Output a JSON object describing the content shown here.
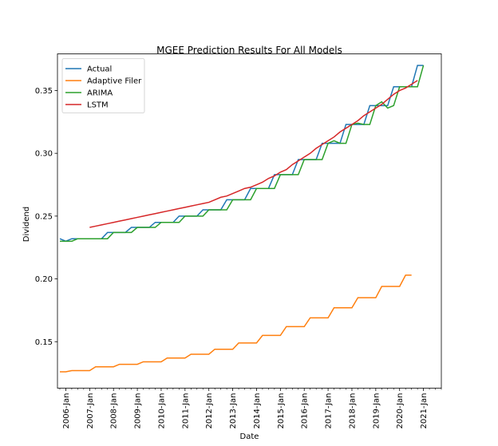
{
  "chart_data": {
    "type": "line",
    "title": "MGEE Prediction Results For All Models",
    "xlabel": "Date",
    "ylabel": "Dividend",
    "xlim": [
      2005.65,
      2021.75
    ],
    "ylim": [
      0.113,
      0.3792
    ],
    "x_ticks": [
      {
        "value": 2006,
        "label": "2006-Jan"
      },
      {
        "value": 2007,
        "label": "2007-Jan"
      },
      {
        "value": 2008,
        "label": "2008-Jan"
      },
      {
        "value": 2009,
        "label": "2009-Jan"
      },
      {
        "value": 2010,
        "label": "2010-Jan"
      },
      {
        "value": 2011,
        "label": "2011-Jan"
      },
      {
        "value": 2012,
        "label": "2012-Jan"
      },
      {
        "value": 2013,
        "label": "2013-Jan"
      },
      {
        "value": 2014,
        "label": "2014-Jan"
      },
      {
        "value": 2015,
        "label": "2015-Jan"
      },
      {
        "value": 2016,
        "label": "2016-Jan"
      },
      {
        "value": 2017,
        "label": "2017-Jan"
      },
      {
        "value": 2018,
        "label": "2018-Jan"
      },
      {
        "value": 2019,
        "label": "2019-Jan"
      },
      {
        "value": 2020,
        "label": "2020-Jan"
      },
      {
        "value": 2021,
        "label": "2021-Jan"
      }
    ],
    "y_ticks": [
      {
        "value": 0.15,
        "label": "0.15"
      },
      {
        "value": 0.2,
        "label": "0.20"
      },
      {
        "value": 0.25,
        "label": "0.25"
      },
      {
        "value": 0.3,
        "label": "0.30"
      },
      {
        "value": 0.35,
        "label": "0.35"
      }
    ],
    "grid": false,
    "legend_position": "top-left",
    "series": [
      {
        "name": "Actual",
        "color": "#1f77b4",
        "points": [
          [
            2005.75,
            0.232
          ],
          [
            2006.0,
            0.23
          ],
          [
            2006.25,
            0.232
          ],
          [
            2006.5,
            0.232
          ],
          [
            2006.75,
            0.232
          ],
          [
            2007.0,
            0.232
          ],
          [
            2007.25,
            0.232
          ],
          [
            2007.5,
            0.232
          ],
          [
            2007.75,
            0.237
          ],
          [
            2008.0,
            0.237
          ],
          [
            2008.25,
            0.237
          ],
          [
            2008.5,
            0.237
          ],
          [
            2008.75,
            0.241
          ],
          [
            2009.0,
            0.241
          ],
          [
            2009.25,
            0.241
          ],
          [
            2009.5,
            0.241
          ],
          [
            2009.75,
            0.245
          ],
          [
            2010.0,
            0.245
          ],
          [
            2010.25,
            0.245
          ],
          [
            2010.5,
            0.245
          ],
          [
            2010.75,
            0.25
          ],
          [
            2011.0,
            0.25
          ],
          [
            2011.25,
            0.25
          ],
          [
            2011.5,
            0.25
          ],
          [
            2011.75,
            0.255
          ],
          [
            2012.0,
            0.255
          ],
          [
            2012.25,
            0.255
          ],
          [
            2012.5,
            0.255
          ],
          [
            2012.75,
            0.263
          ],
          [
            2013.0,
            0.263
          ],
          [
            2013.25,
            0.263
          ],
          [
            2013.5,
            0.263
          ],
          [
            2013.75,
            0.272
          ],
          [
            2014.0,
            0.272
          ],
          [
            2014.25,
            0.272
          ],
          [
            2014.5,
            0.272
          ],
          [
            2014.75,
            0.283
          ],
          [
            2015.0,
            0.283
          ],
          [
            2015.25,
            0.283
          ],
          [
            2015.5,
            0.283
          ],
          [
            2015.75,
            0.295
          ],
          [
            2016.0,
            0.295
          ],
          [
            2016.25,
            0.295
          ],
          [
            2016.5,
            0.295
          ],
          [
            2016.75,
            0.308
          ],
          [
            2017.0,
            0.308
          ],
          [
            2017.25,
            0.308
          ],
          [
            2017.5,
            0.308
          ],
          [
            2017.75,
            0.323
          ],
          [
            2018.0,
            0.323
          ],
          [
            2018.25,
            0.323
          ],
          [
            2018.5,
            0.323
          ],
          [
            2018.75,
            0.338
          ],
          [
            2019.0,
            0.338
          ],
          [
            2019.25,
            0.338
          ],
          [
            2019.5,
            0.338
          ],
          [
            2019.75,
            0.353
          ],
          [
            2020.0,
            0.353
          ],
          [
            2020.25,
            0.353
          ],
          [
            2020.5,
            0.353
          ],
          [
            2020.75,
            0.37
          ],
          [
            2021.0,
            0.37
          ]
        ]
      },
      {
        "name": "Adaptive Filer",
        "color": "#ff7f0e",
        "points": [
          [
            2005.75,
            0.126
          ],
          [
            2006.0,
            0.126
          ],
          [
            2006.25,
            0.127
          ],
          [
            2006.5,
            0.127
          ],
          [
            2006.75,
            0.127
          ],
          [
            2007.0,
            0.127
          ],
          [
            2007.25,
            0.13
          ],
          [
            2007.5,
            0.13
          ],
          [
            2007.75,
            0.13
          ],
          [
            2008.0,
            0.13
          ],
          [
            2008.25,
            0.132
          ],
          [
            2008.5,
            0.132
          ],
          [
            2008.75,
            0.132
          ],
          [
            2009.0,
            0.132
          ],
          [
            2009.25,
            0.134
          ],
          [
            2009.5,
            0.134
          ],
          [
            2009.75,
            0.134
          ],
          [
            2010.0,
            0.134
          ],
          [
            2010.25,
            0.137
          ],
          [
            2010.5,
            0.137
          ],
          [
            2010.75,
            0.137
          ],
          [
            2011.0,
            0.137
          ],
          [
            2011.25,
            0.14
          ],
          [
            2011.5,
            0.14
          ],
          [
            2011.75,
            0.14
          ],
          [
            2012.0,
            0.14
          ],
          [
            2012.25,
            0.144
          ],
          [
            2012.5,
            0.144
          ],
          [
            2012.75,
            0.144
          ],
          [
            2013.0,
            0.144
          ],
          [
            2013.25,
            0.149
          ],
          [
            2013.5,
            0.149
          ],
          [
            2013.75,
            0.149
          ],
          [
            2014.0,
            0.149
          ],
          [
            2014.25,
            0.155
          ],
          [
            2014.5,
            0.155
          ],
          [
            2014.75,
            0.155
          ],
          [
            2015.0,
            0.155
          ],
          [
            2015.25,
            0.162
          ],
          [
            2015.5,
            0.162
          ],
          [
            2015.75,
            0.162
          ],
          [
            2016.0,
            0.162
          ],
          [
            2016.25,
            0.169
          ],
          [
            2016.5,
            0.169
          ],
          [
            2016.75,
            0.169
          ],
          [
            2017.0,
            0.169
          ],
          [
            2017.25,
            0.177
          ],
          [
            2017.5,
            0.177
          ],
          [
            2017.75,
            0.177
          ],
          [
            2018.0,
            0.177
          ],
          [
            2018.25,
            0.185
          ],
          [
            2018.5,
            0.185
          ],
          [
            2018.75,
            0.185
          ],
          [
            2019.0,
            0.185
          ],
          [
            2019.25,
            0.194
          ],
          [
            2019.5,
            0.194
          ],
          [
            2019.75,
            0.194
          ],
          [
            2020.0,
            0.194
          ],
          [
            2020.25,
            0.203
          ],
          [
            2020.5,
            0.203
          ]
        ]
      },
      {
        "name": "ARIMA",
        "color": "#2ca02c",
        "points": [
          [
            2005.75,
            0.23
          ],
          [
            2006.0,
            0.23
          ],
          [
            2006.25,
            0.23
          ],
          [
            2006.5,
            0.232
          ],
          [
            2006.75,
            0.232
          ],
          [
            2007.0,
            0.232
          ],
          [
            2007.25,
            0.232
          ],
          [
            2007.5,
            0.232
          ],
          [
            2007.75,
            0.232
          ],
          [
            2008.0,
            0.237
          ],
          [
            2008.25,
            0.237
          ],
          [
            2008.5,
            0.237
          ],
          [
            2008.75,
            0.237
          ],
          [
            2009.0,
            0.241
          ],
          [
            2009.25,
            0.241
          ],
          [
            2009.5,
            0.241
          ],
          [
            2009.75,
            0.241
          ],
          [
            2010.0,
            0.245
          ],
          [
            2010.25,
            0.245
          ],
          [
            2010.5,
            0.245
          ],
          [
            2010.75,
            0.245
          ],
          [
            2011.0,
            0.25
          ],
          [
            2011.25,
            0.25
          ],
          [
            2011.5,
            0.25
          ],
          [
            2011.75,
            0.25
          ],
          [
            2012.0,
            0.255
          ],
          [
            2012.25,
            0.255
          ],
          [
            2012.5,
            0.255
          ],
          [
            2012.75,
            0.255
          ],
          [
            2013.0,
            0.263
          ],
          [
            2013.25,
            0.263
          ],
          [
            2013.5,
            0.263
          ],
          [
            2013.75,
            0.263
          ],
          [
            2014.0,
            0.272
          ],
          [
            2014.25,
            0.272
          ],
          [
            2014.5,
            0.272
          ],
          [
            2014.75,
            0.272
          ],
          [
            2015.0,
            0.283
          ],
          [
            2015.25,
            0.283
          ],
          [
            2015.5,
            0.283
          ],
          [
            2015.75,
            0.283
          ],
          [
            2016.0,
            0.295
          ],
          [
            2016.25,
            0.295
          ],
          [
            2016.5,
            0.295
          ],
          [
            2016.75,
            0.295
          ],
          [
            2017.0,
            0.308
          ],
          [
            2017.25,
            0.31
          ],
          [
            2017.5,
            0.308
          ],
          [
            2017.75,
            0.308
          ],
          [
            2018.0,
            0.323
          ],
          [
            2018.25,
            0.324
          ],
          [
            2018.5,
            0.323
          ],
          [
            2018.75,
            0.323
          ],
          [
            2019.0,
            0.338
          ],
          [
            2019.25,
            0.341
          ],
          [
            2019.5,
            0.336
          ],
          [
            2019.75,
            0.338
          ],
          [
            2020.0,
            0.353
          ],
          [
            2020.25,
            0.353
          ],
          [
            2020.5,
            0.353
          ],
          [
            2020.75,
            0.353
          ],
          [
            2021.0,
            0.37
          ]
        ]
      },
      {
        "name": "LSTM",
        "color": "#d62728",
        "points": [
          [
            2007.0,
            0.241
          ],
          [
            2007.25,
            0.242
          ],
          [
            2007.5,
            0.243
          ],
          [
            2007.75,
            0.244
          ],
          [
            2008.0,
            0.245
          ],
          [
            2008.25,
            0.246
          ],
          [
            2008.5,
            0.247
          ],
          [
            2008.75,
            0.248
          ],
          [
            2009.0,
            0.249
          ],
          [
            2009.25,
            0.25
          ],
          [
            2009.5,
            0.251
          ],
          [
            2009.75,
            0.252
          ],
          [
            2010.0,
            0.253
          ],
          [
            2010.25,
            0.254
          ],
          [
            2010.5,
            0.255
          ],
          [
            2010.75,
            0.256
          ],
          [
            2011.0,
            0.257
          ],
          [
            2011.25,
            0.258
          ],
          [
            2011.5,
            0.259
          ],
          [
            2011.75,
            0.26
          ],
          [
            2012.0,
            0.261
          ],
          [
            2012.25,
            0.263
          ],
          [
            2012.5,
            0.265
          ],
          [
            2012.75,
            0.266
          ],
          [
            2013.0,
            0.268
          ],
          [
            2013.25,
            0.27
          ],
          [
            2013.5,
            0.272
          ],
          [
            2013.75,
            0.273
          ],
          [
            2014.0,
            0.275
          ],
          [
            2014.25,
            0.277
          ],
          [
            2014.5,
            0.28
          ],
          [
            2014.75,
            0.282
          ],
          [
            2015.0,
            0.285
          ],
          [
            2015.25,
            0.287
          ],
          [
            2015.5,
            0.291
          ],
          [
            2015.75,
            0.294
          ],
          [
            2016.0,
            0.297
          ],
          [
            2016.25,
            0.3
          ],
          [
            2016.5,
            0.304
          ],
          [
            2016.75,
            0.307
          ],
          [
            2017.0,
            0.31
          ],
          [
            2017.25,
            0.313
          ],
          [
            2017.5,
            0.317
          ],
          [
            2017.75,
            0.32
          ],
          [
            2018.0,
            0.323
          ],
          [
            2018.25,
            0.326
          ],
          [
            2018.5,
            0.33
          ],
          [
            2018.75,
            0.333
          ],
          [
            2019.0,
            0.336
          ],
          [
            2019.25,
            0.339
          ],
          [
            2019.5,
            0.343
          ],
          [
            2019.75,
            0.347
          ],
          [
            2020.0,
            0.35
          ],
          [
            2020.25,
            0.352
          ],
          [
            2020.5,
            0.355
          ],
          [
            2020.75,
            0.358
          ]
        ]
      }
    ]
  }
}
